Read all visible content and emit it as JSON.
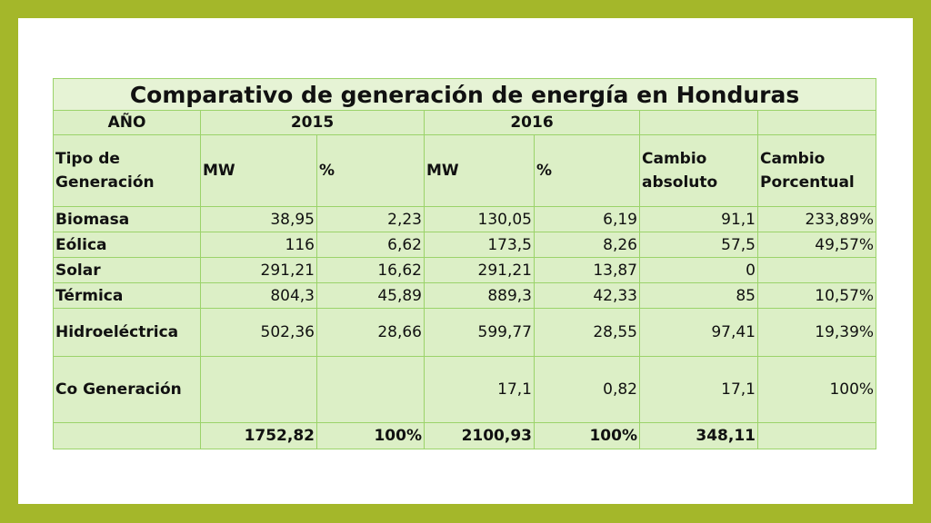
{
  "table": {
    "title": "Comparativo de generación de energía en Honduras",
    "year_label": "AÑO",
    "year_2015": "2015",
    "year_2016": "2016",
    "col_tipo": "Tipo de Generación",
    "col_mw_2015": "MW",
    "col_pct_2015": "%",
    "col_mw_2016": "MW",
    "col_pct_2016": "%",
    "col_cambio_abs": "Cambio absoluto",
    "col_cambio_pct": "Cambio Porcentual",
    "rows": [
      {
        "tipo": "Biomasa",
        "mw2015": "38,95",
        "pct2015": "2,23",
        "mw2016": "130,05",
        "pct2016": "6,19",
        "abs": "91,1",
        "pct": "233,89%"
      },
      {
        "tipo": "Eólica",
        "mw2015": "116",
        "pct2015": "6,62",
        "mw2016": "173,5",
        "pct2016": "8,26",
        "abs": "57,5",
        "pct": "49,57%"
      },
      {
        "tipo": "Solar",
        "mw2015": "291,21",
        "pct2015": "16,62",
        "mw2016": "291,21",
        "pct2016": "13,87",
        "abs": "0",
        "pct": ""
      },
      {
        "tipo": "Térmica",
        "mw2015": "804,3",
        "pct2015": "45,89",
        "mw2016": "889,3",
        "pct2016": "42,33",
        "abs": "85",
        "pct": "10,57%"
      },
      {
        "tipo": "Hidroeléctrica",
        "mw2015": "502,36",
        "pct2015": "28,66",
        "mw2016": "599,77",
        "pct2016": "28,55",
        "abs": "97,41",
        "pct": "19,39%"
      },
      {
        "tipo": "Co Generación",
        "mw2015": "",
        "pct2015": "",
        "mw2016": "17,1",
        "pct2016": "0,82",
        "abs": "17,1",
        "pct": "100%"
      }
    ],
    "total": {
      "tipo": "",
      "mw2015": "1752,82",
      "pct2015": "100%",
      "mw2016": "2100,93",
      "pct2016": "100%",
      "abs": "348,11",
      "pct": ""
    }
  }
}
